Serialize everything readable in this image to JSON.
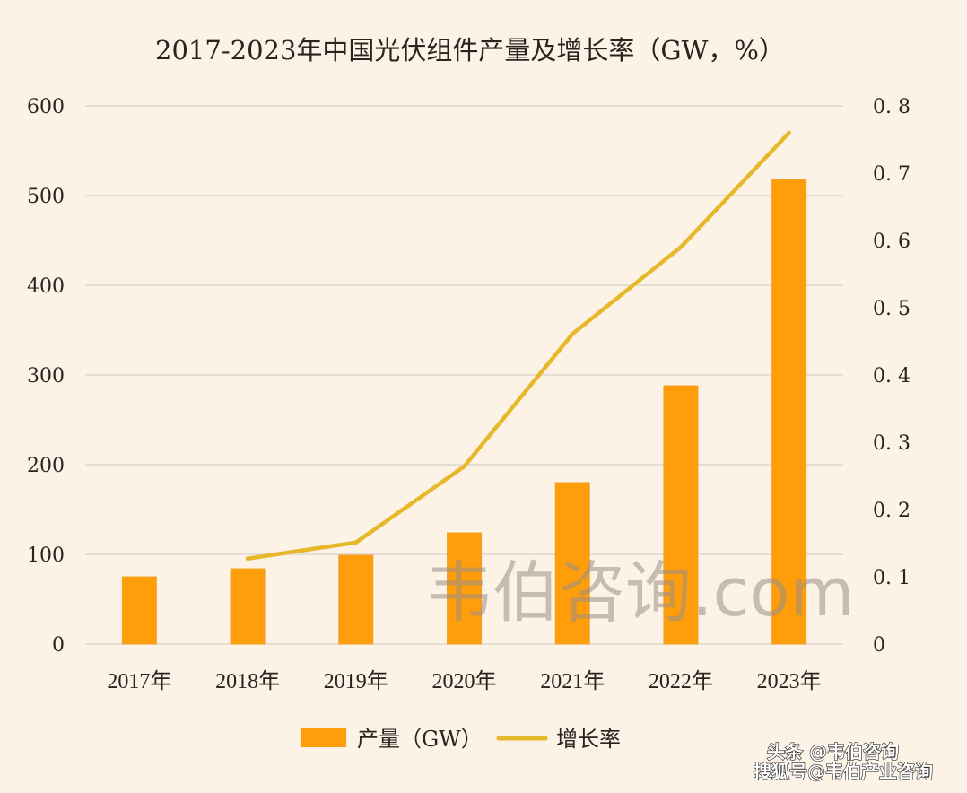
{
  "chart_data": {
    "type": "bar",
    "title": "2017-2023年中国光伏组件产量及增长率（GW，%）",
    "categories": [
      "2017年",
      "2018年",
      "2019年",
      "2020年",
      "2021年",
      "2022年",
      "2023年"
    ],
    "series": [
      {
        "name": "产量（GW）",
        "type": "bar",
        "axis": "left",
        "color": "#ff9e0a",
        "values": [
          75,
          84,
          99,
          124,
          180,
          288,
          518
        ]
      },
      {
        "name": "增长率",
        "type": "line",
        "axis": "right",
        "color": "#e6b82a",
        "values": [
          null,
          0.127,
          0.151,
          0.264,
          0.461,
          0.59,
          0.76
        ]
      }
    ],
    "y_left": {
      "range": [
        0,
        600
      ],
      "ticks": [
        "0",
        "100",
        "200",
        "300",
        "400",
        "500",
        "600"
      ]
    },
    "y_right": {
      "range": [
        0,
        0.8
      ],
      "ticks": [
        "0",
        "0. 1",
        "0. 2",
        "0. 3",
        "0. 4",
        "0. 5",
        "0. 6",
        "0. 7",
        "0. 8"
      ]
    },
    "xlabel": "",
    "ylabel": "",
    "grid": true,
    "legend": {
      "position": "bottom",
      "items": [
        "产量（GW）",
        "增长率"
      ]
    }
  },
  "watermark": "韦伯咨询.com",
  "footer": {
    "line1": "头条 @韦伯咨询",
    "line2": "搜狐号@韦伯产业咨询"
  },
  "colors": {
    "background": "#fcf3e6",
    "bar": "#ff9e0a",
    "line": "#e6b82a",
    "grid": "#d8d2ca",
    "text": "#2a2420"
  }
}
